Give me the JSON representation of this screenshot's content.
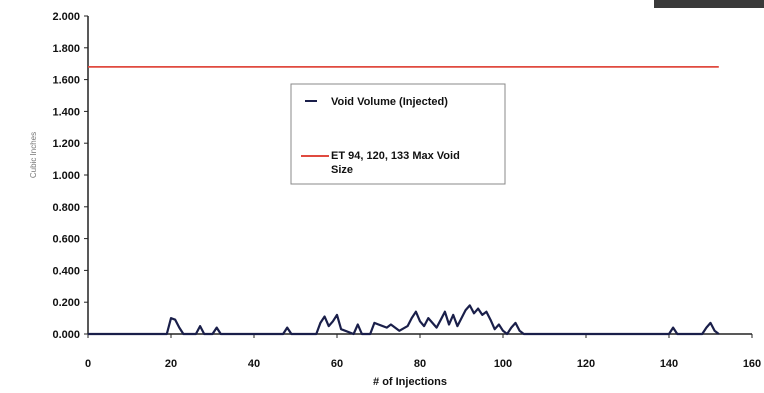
{
  "chart_data": {
    "type": "line",
    "title": "",
    "xlabel": "# of Injections",
    "ylabel": "Cubic Inches",
    "xlim": [
      0,
      160
    ],
    "ylim": [
      0,
      2.0
    ],
    "x_ticks": [
      "0",
      "20",
      "40",
      "60",
      "80",
      "100",
      "120",
      "140",
      "160"
    ],
    "y_ticks": [
      "0.000",
      "0.200",
      "0.400",
      "0.600",
      "0.800",
      "1.000",
      "1.200",
      "1.400",
      "1.600",
      "1.800",
      "2.000"
    ],
    "legend_position": "center",
    "series": [
      {
        "name": "Void Volume (Injected)",
        "color": "#1a1f4a",
        "marker": "dash",
        "x": [
          0,
          19,
          20,
          21,
          22,
          23,
          26,
          27,
          28,
          30,
          31,
          32,
          47,
          48,
          49,
          55,
          56,
          57,
          58,
          59,
          60,
          61,
          64,
          65,
          66,
          68,
          69,
          70,
          72,
          73,
          75,
          77,
          78,
          79,
          80,
          81,
          82,
          84,
          85,
          86,
          87,
          88,
          89,
          90,
          91,
          92,
          93,
          94,
          95,
          96,
          97,
          98,
          99,
          100,
          101,
          102,
          103,
          104,
          105,
          106,
          140,
          141,
          142,
          148,
          149,
          150,
          151,
          152
        ],
        "y": [
          0.0,
          0.0,
          0.1,
          0.09,
          0.04,
          0.0,
          0.0,
          0.05,
          0.0,
          0.0,
          0.04,
          0.0,
          0.0,
          0.04,
          0.0,
          0.0,
          0.07,
          0.11,
          0.05,
          0.08,
          0.12,
          0.03,
          0.0,
          0.06,
          0.0,
          0.0,
          0.07,
          0.06,
          0.04,
          0.06,
          0.02,
          0.05,
          0.1,
          0.14,
          0.08,
          0.05,
          0.1,
          0.04,
          0.09,
          0.14,
          0.06,
          0.12,
          0.05,
          0.1,
          0.15,
          0.18,
          0.13,
          0.16,
          0.12,
          0.14,
          0.09,
          0.03,
          0.06,
          0.02,
          0.0,
          0.04,
          0.07,
          0.02,
          0.0,
          0.0,
          0.0,
          0.04,
          0.0,
          0.0,
          0.04,
          0.07,
          0.02,
          0.0
        ]
      },
      {
        "name": "ET 94, 120, 133 Max Void Size",
        "color": "#e04a3f",
        "x": [
          0,
          152
        ],
        "y": [
          1.68,
          1.68
        ]
      }
    ]
  }
}
